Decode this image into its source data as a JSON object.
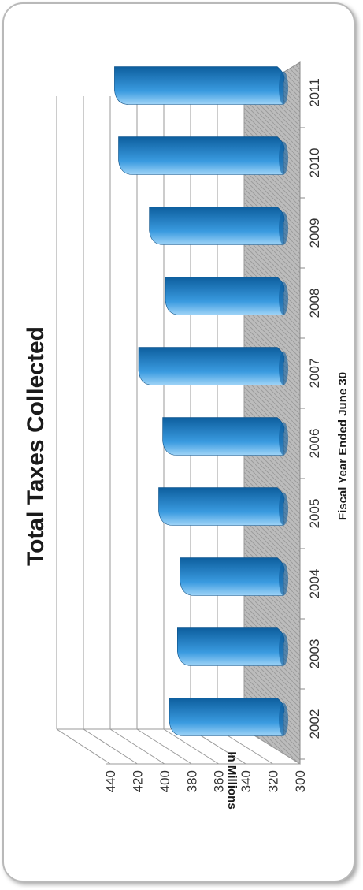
{
  "chart_data": {
    "type": "bar",
    "title": "Total Taxes Collected",
    "xlabel": "Fiscal Year Ended June 30",
    "ylabel": "In Millions",
    "categories": [
      "2002",
      "2003",
      "2004",
      "2005",
      "2006",
      "2007",
      "2008",
      "2009",
      "2010",
      "2011"
    ],
    "values": [
      377,
      371,
      369,
      385,
      382,
      400,
      380,
      392,
      415,
      418
    ],
    "ylim": [
      300,
      440
    ],
    "yticks": [
      "300",
      "320",
      "340",
      "360",
      "380",
      "400",
      "420",
      "440"
    ],
    "grid": true,
    "three_d": true,
    "bar_color": "#2a8ad3",
    "floor_color": "#b8b8b8"
  }
}
